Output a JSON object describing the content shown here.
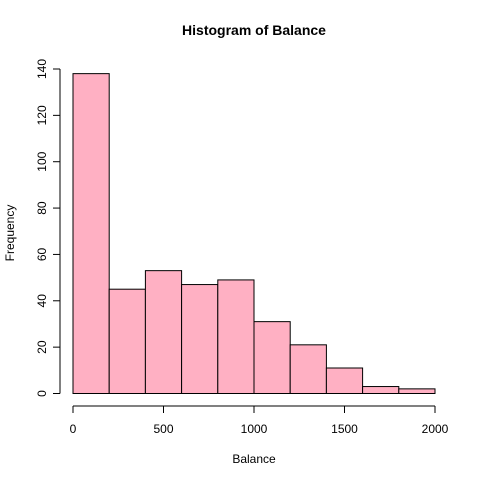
{
  "chart_data": {
    "type": "bar",
    "title": "Histogram of Balance",
    "xlabel": "Balance",
    "ylabel": "Frequency",
    "bins": [
      {
        "start": 0,
        "end": 200,
        "count": 138
      },
      {
        "start": 200,
        "end": 400,
        "count": 45
      },
      {
        "start": 400,
        "end": 600,
        "count": 53
      },
      {
        "start": 600,
        "end": 800,
        "count": 47
      },
      {
        "start": 800,
        "end": 1000,
        "count": 49
      },
      {
        "start": 1000,
        "end": 1200,
        "count": 31
      },
      {
        "start": 1200,
        "end": 1400,
        "count": 21
      },
      {
        "start": 1400,
        "end": 1600,
        "count": 11
      },
      {
        "start": 1600,
        "end": 1800,
        "count": 3
      },
      {
        "start": 1800,
        "end": 2000,
        "count": 2
      }
    ],
    "xlim": [
      0,
      2000
    ],
    "ylim": [
      0,
      140
    ],
    "x_ticks": [
      "0",
      "500",
      "1000",
      "1500",
      "2000"
    ],
    "y_ticks": [
      "0",
      "20",
      "40",
      "60",
      "80",
      "100",
      "120",
      "140"
    ],
    "bar_color": "#FFB0C3",
    "grid": false
  }
}
